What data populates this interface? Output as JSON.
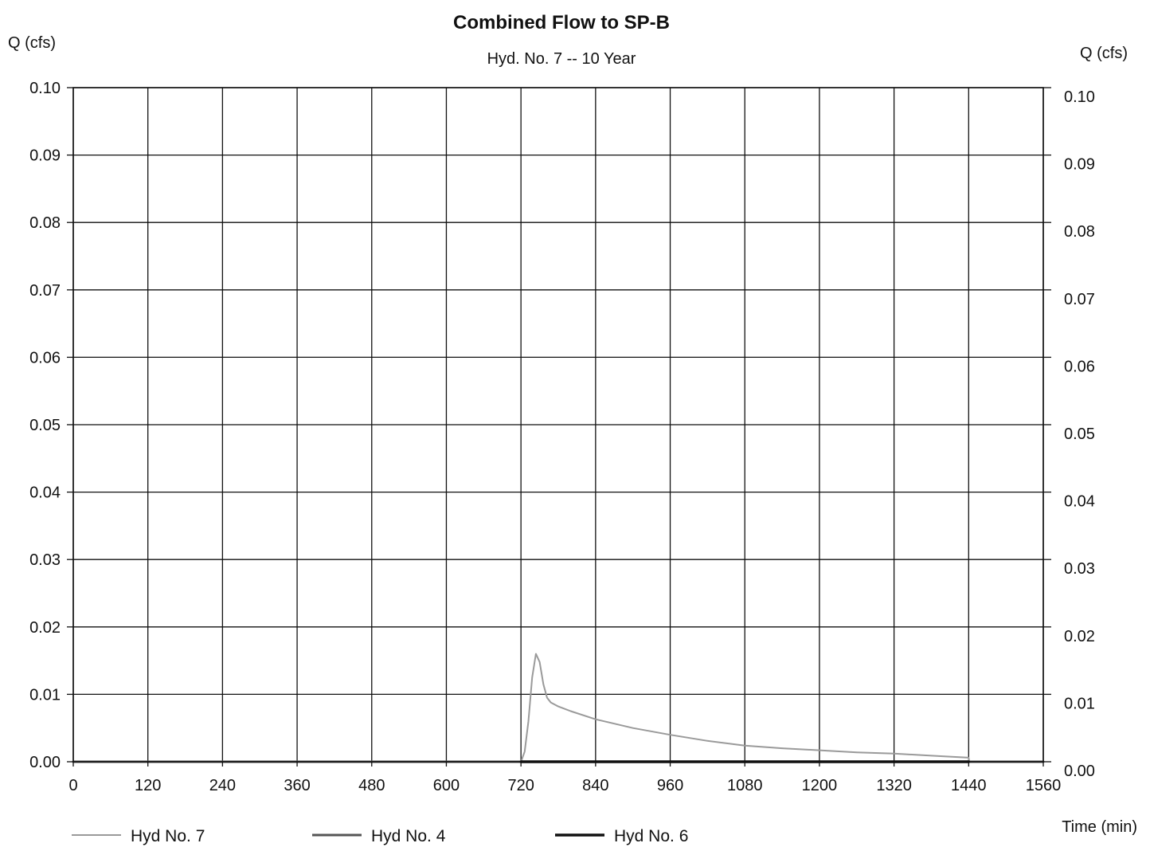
{
  "chart_data": {
    "type": "line",
    "title": "Combined Flow to SP-B",
    "subtitle": "Hyd. No. 7 -- 10 Year",
    "ylabel_left": "Q (cfs)",
    "ylabel_right": "Q (cfs)",
    "xlabel": "Time (min)",
    "xlim": [
      0,
      1560
    ],
    "ylim": [
      0,
      0.1
    ],
    "grid": true,
    "legend_position": "bottom",
    "x_ticks": [
      "0",
      "120",
      "240",
      "360",
      "480",
      "600",
      "720",
      "840",
      "960",
      "1080",
      "1200",
      "1320",
      "1440",
      "1560"
    ],
    "y_ticks": [
      "0.00",
      "0.01",
      "0.02",
      "0.03",
      "0.04",
      "0.05",
      "0.06",
      "0.07",
      "0.08",
      "0.09",
      "0.10"
    ],
    "series": [
      {
        "name": "Hyd No. 7",
        "color": "#9a9a9a",
        "x": [
          0,
          720,
          726,
          732,
          738,
          744,
          750,
          756,
          762,
          768,
          780,
          800,
          840,
          900,
          960,
          1020,
          1080,
          1140,
          1200,
          1260,
          1320,
          1380,
          1440,
          1441,
          1560
        ],
        "y": [
          0.0,
          0.0,
          0.0015,
          0.006,
          0.0125,
          0.016,
          0.0148,
          0.0115,
          0.0095,
          0.0088,
          0.0082,
          0.0075,
          0.0063,
          0.005,
          0.004,
          0.0031,
          0.0024,
          0.002,
          0.0017,
          0.0014,
          0.0012,
          0.0009,
          0.0006,
          0.0,
          0.0
        ]
      },
      {
        "name": "Hyd No. 4",
        "color": "#555555",
        "x": [
          0,
          720,
          1440,
          1441,
          1560
        ],
        "y": [
          0.0,
          0.0,
          0.0,
          0.0,
          0.0
        ]
      },
      {
        "name": "Hyd No. 6",
        "color": "#111111",
        "x": [
          720,
          1440
        ],
        "y": [
          0.0,
          0.0
        ]
      }
    ]
  }
}
